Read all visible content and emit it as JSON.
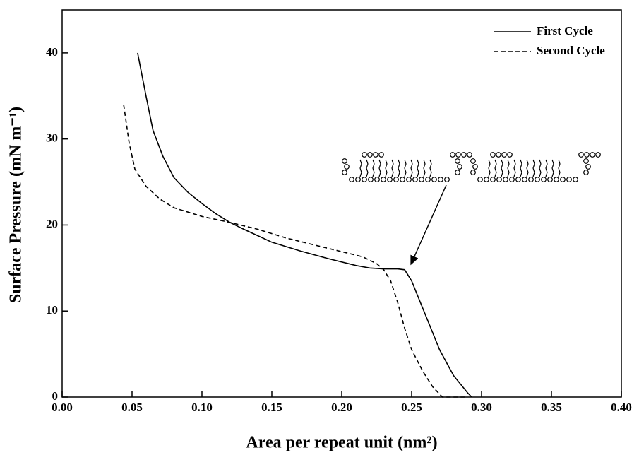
{
  "chart_data": {
    "type": "line",
    "xlabel": "Area per repeat unit (nm²)",
    "ylabel": "Surface Pressure (mN m⁻¹)",
    "xlim": [
      0,
      0.4
    ],
    "ylim": [
      0,
      45
    ],
    "xticks": [
      {
        "value": 0,
        "label": "0.00"
      },
      {
        "value": 0.05,
        "label": "0.05"
      },
      {
        "value": 0.1,
        "label": "0.10"
      },
      {
        "value": 0.15,
        "label": "0.15"
      },
      {
        "value": 0.2,
        "label": "0.20"
      },
      {
        "value": 0.25,
        "label": "0.25"
      },
      {
        "value": 0.3,
        "label": "0.30"
      },
      {
        "value": 0.35,
        "label": "0.35"
      },
      {
        "value": 0.4,
        "label": "0.40"
      }
    ],
    "yticks": [
      0,
      10,
      20,
      30,
      40
    ],
    "legend": "upper right",
    "series": [
      {
        "name": "First Cycle",
        "color": "#000000",
        "linestyle": "solid",
        "x": [
          0.054,
          0.06,
          0.065,
          0.072,
          0.08,
          0.09,
          0.1,
          0.11,
          0.12,
          0.13,
          0.15,
          0.17,
          0.19,
          0.21,
          0.22,
          0.23,
          0.24,
          0.245,
          0.25,
          0.255,
          0.26,
          0.27,
          0.28,
          0.29,
          0.293
        ],
        "values": [
          40,
          35,
          31,
          28,
          25.5,
          23.8,
          22.5,
          21.3,
          20.3,
          19.5,
          18,
          17,
          16.1,
          15.3,
          15,
          14.9,
          14.9,
          14.8,
          13.5,
          11.5,
          9.5,
          5.5,
          2.5,
          0.5,
          0
        ]
      },
      {
        "name": "Second Cycle",
        "color": "#000000",
        "linestyle": "dashed",
        "x": [
          0.044,
          0.048,
          0.052,
          0.06,
          0.07,
          0.08,
          0.1,
          0.12,
          0.14,
          0.16,
          0.18,
          0.2,
          0.215,
          0.225,
          0.23,
          0.235,
          0.24,
          0.245,
          0.25,
          0.258,
          0.265,
          0.272,
          0.29
        ],
        "values": [
          34,
          29.5,
          26.5,
          24.5,
          23,
          22,
          21,
          20.3,
          19.5,
          18.5,
          17.7,
          16.9,
          16.3,
          15.5,
          14.8,
          13.5,
          11,
          8,
          5.5,
          3,
          1.2,
          0,
          0
        ]
      }
    ]
  }
}
